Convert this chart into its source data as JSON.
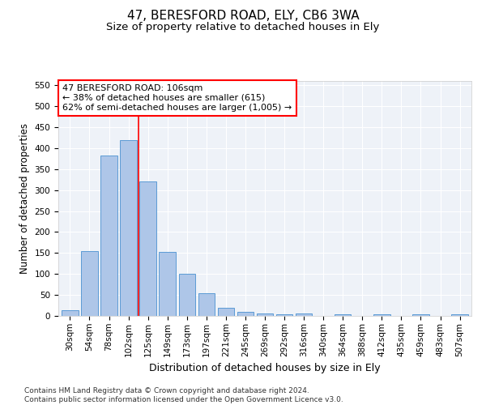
{
  "title1": "47, BERESFORD ROAD, ELY, CB6 3WA",
  "title2": "Size of property relative to detached houses in Ely",
  "xlabel": "Distribution of detached houses by size in Ely",
  "ylabel": "Number of detached properties",
  "categories": [
    "30sqm",
    "54sqm",
    "78sqm",
    "102sqm",
    "125sqm",
    "149sqm",
    "173sqm",
    "197sqm",
    "221sqm",
    "245sqm",
    "269sqm",
    "292sqm",
    "316sqm",
    "340sqm",
    "364sqm",
    "388sqm",
    "412sqm",
    "435sqm",
    "459sqm",
    "483sqm",
    "507sqm"
  ],
  "values": [
    13,
    155,
    382,
    420,
    320,
    153,
    100,
    55,
    20,
    10,
    5,
    3,
    5,
    0,
    4,
    0,
    3,
    0,
    3,
    0,
    4
  ],
  "bar_color": "#aec6e8",
  "bar_edge_color": "#5b9bd5",
  "vline_x": 3.5,
  "vline_color": "red",
  "annotation_text": "47 BERESFORD ROAD: 106sqm\n← 38% of detached houses are smaller (615)\n62% of semi-detached houses are larger (1,005) →",
  "annotation_box_color": "white",
  "annotation_box_edge": "red",
  "ylim": [
    0,
    560
  ],
  "yticks": [
    0,
    50,
    100,
    150,
    200,
    250,
    300,
    350,
    400,
    450,
    500,
    550
  ],
  "footnote": "Contains HM Land Registry data © Crown copyright and database right 2024.\nContains public sector information licensed under the Open Government Licence v3.0.",
  "title1_fontsize": 11,
  "title2_fontsize": 9.5,
  "xlabel_fontsize": 9,
  "ylabel_fontsize": 8.5,
  "tick_fontsize": 7.5,
  "annotation_fontsize": 8,
  "footnote_fontsize": 6.5,
  "bg_color": "#eef2f8"
}
